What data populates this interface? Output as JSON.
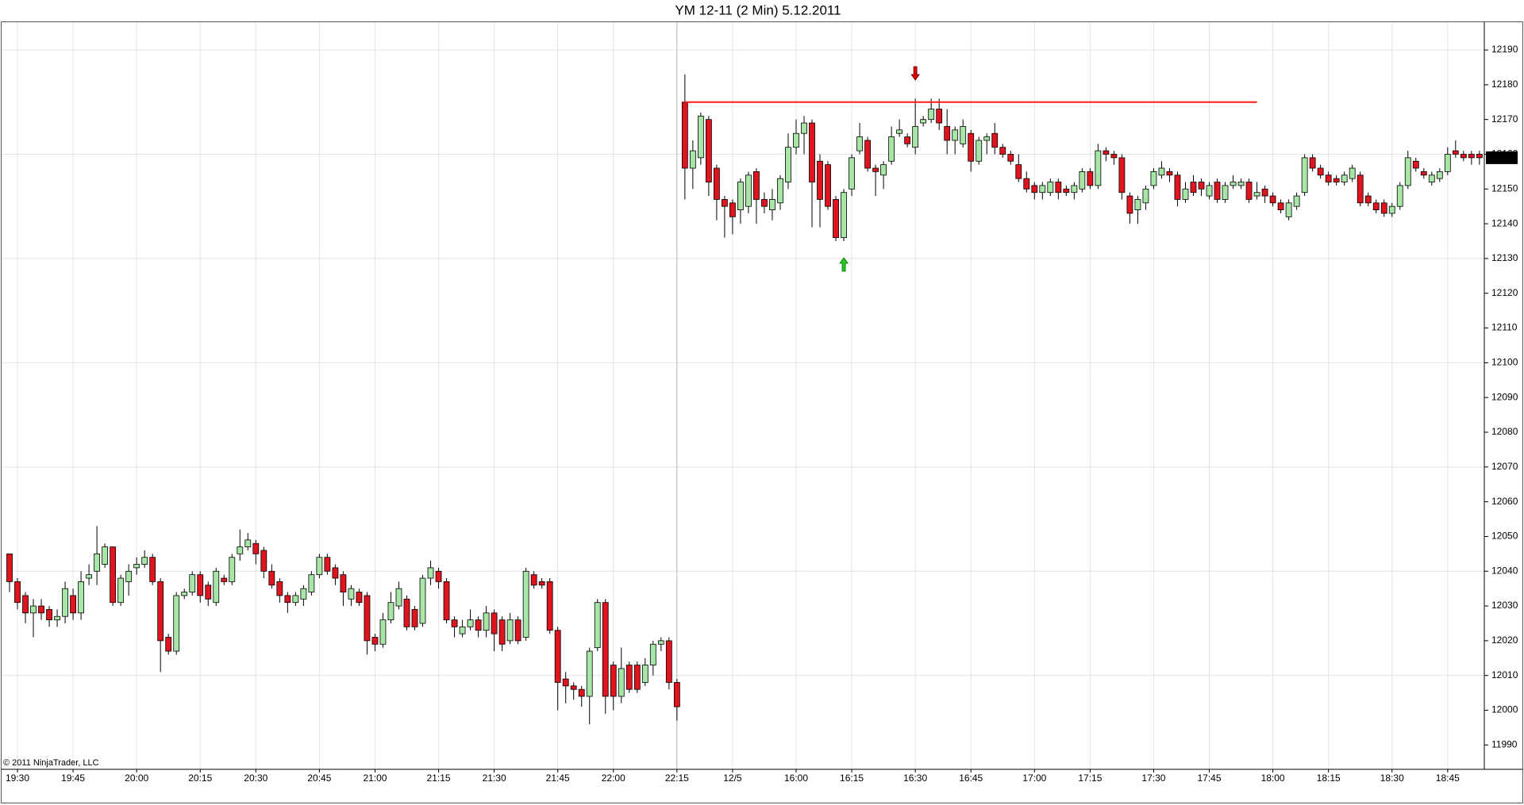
{
  "chart_data": {
    "type": "candlestick",
    "title": "YM 12-11 (2 Min)  5.12.2011",
    "copyright": "© 2011 NinjaTrader, LLC",
    "up_color": "#a8e6a8",
    "down_color": "#e0141e",
    "grid": true,
    "categories": [
      null,
      "19:30",
      null,
      null,
      null,
      null,
      null,
      null,
      "19:45",
      null,
      null,
      null,
      null,
      null,
      null,
      null,
      "20:00",
      null,
      null,
      null,
      null,
      null,
      null,
      null,
      "20:15",
      null,
      null,
      null,
      null,
      null,
      null,
      "20:30",
      null,
      null,
      null,
      null,
      null,
      null,
      null,
      "20:45",
      null,
      null,
      null,
      null,
      null,
      null,
      "21:00",
      null,
      null,
      null,
      null,
      null,
      null,
      null,
      "21:15",
      null,
      null,
      null,
      null,
      null,
      null,
      "21:30",
      null,
      null,
      null,
      null,
      null,
      null,
      null,
      "21:45",
      null,
      null,
      null,
      null,
      null,
      null,
      "22:00",
      null,
      null,
      null,
      null,
      null,
      null,
      null,
      "22:15",
      null,
      null,
      null,
      null,
      null,
      null,
      "12/5",
      null,
      null,
      null,
      null,
      null,
      null,
      null,
      "16:00",
      null,
      null,
      null,
      null,
      null,
      null,
      "16:15",
      null,
      null,
      null,
      null,
      null,
      null,
      null,
      "16:30",
      null,
      null,
      null,
      null,
      null,
      null,
      "16:45",
      null,
      null,
      null,
      null,
      null,
      null,
      null,
      "17:00",
      null,
      null,
      null,
      null,
      null,
      null,
      "17:15",
      null,
      null,
      null,
      null,
      null,
      null,
      null,
      "17:30",
      null,
      null,
      null,
      null,
      null,
      null,
      "17:45",
      null,
      null,
      null,
      null,
      null,
      null,
      null,
      "18:00",
      null,
      null,
      null,
      null,
      null,
      null,
      "18:15",
      null,
      null,
      null,
      null,
      null,
      null,
      null,
      "18:30",
      null,
      null,
      null,
      null,
      null,
      null,
      "18:45",
      null,
      null,
      null,
      null
    ],
    "open": [
      12045,
      12037,
      12033,
      12028,
      12030,
      12029,
      12026,
      12027,
      12033,
      12028,
      12038,
      12040,
      12042,
      12047,
      12031,
      12037,
      12041,
      12042,
      12044,
      12037,
      12021,
      12017,
      12033,
      12034,
      12039,
      12036,
      12031,
      12038,
      12037,
      12045,
      12047,
      12048,
      12046,
      12040,
      12037,
      12033,
      12031,
      12032,
      12034,
      12039,
      12044,
      12041,
      12039,
      12032,
      12034,
      12033,
      12021,
      12019,
      12026,
      12030,
      12032,
      12029,
      12025,
      12038,
      12040,
      12037,
      12026,
      12022,
      12024,
      12026,
      12023,
      12028,
      12026,
      12020,
      12026,
      12021,
      12039,
      12037,
      12037,
      12023,
      12009,
      12007,
      12006,
      12004,
      12018,
      12031,
      12013,
      12004,
      12013,
      12013,
      12008,
      12013,
      12019,
      12020,
      12008,
      12175,
      12156,
      12159,
      12170,
      12156,
      12147,
      12146,
      12144,
      12145,
      12155,
      12147,
      12144,
      12146,
      12152,
      12162,
      12166,
      12169,
      12158,
      12157,
      12147,
      12136,
      12150,
      12161,
      12164,
      12156,
      12154,
      12158,
      12166,
      12165,
      12162,
      12169,
      12170,
      12173,
      12168,
      12164,
      12163,
      12166,
      12158,
      12164,
      12166,
      12162,
      12160,
      12157,
      12153,
      12151,
      12149,
      12149,
      12152,
      12150,
      12149,
      12150,
      12155,
      12151,
      12161,
      12160,
      12159,
      12148,
      12144,
      12146,
      12151,
      12154,
      12155,
      12154,
      12147,
      12152,
      12152,
      12148,
      12152,
      12147,
      12151,
      12151,
      12152,
      12148,
      12150,
      12148,
      12146,
      12142,
      12145,
      12149,
      12159,
      12156,
      12154,
      12153,
      12152,
      12153,
      12154,
      12148,
      12146,
      12146,
      12143,
      12145,
      12151,
      12158,
      12155,
      12152,
      12153,
      12155,
      12161,
      12160,
      12160,
      12160
    ],
    "high": [
      12045,
      12038,
      12034,
      12032,
      12032,
      12030,
      12029,
      12037,
      12035,
      12040,
      12042,
      12053,
      12048,
      12047,
      12039,
      12042,
      12044,
      12046,
      12045,
      12038,
      12022,
      12034,
      12035,
      12040,
      12040,
      12037,
      12041,
      12039,
      12045,
      12052,
      12051,
      12049,
      12047,
      12042,
      12038,
      12034,
      12034,
      12036,
      12040,
      12045,
      12045,
      12042,
      12040,
      12036,
      12035,
      12034,
      12022,
      12028,
      12034,
      12037,
      12033,
      12030,
      12039,
      12043,
      12041,
      12038,
      12027,
      12026,
      12029,
      12027,
      12030,
      12029,
      12027,
      12028,
      12027,
      12041,
      12040,
      12038,
      12038,
      12024,
      12011,
      12008,
      12007,
      12018,
      12032,
      12032,
      12014,
      12018,
      12014,
      12014,
      12015,
      12020,
      12021,
      12021,
      12009,
      12183,
      12164,
      12172,
      12171,
      12157,
      12148,
      12147,
      12153,
      12155,
      12156,
      12149,
      12150,
      12154,
      12166,
      12170,
      12171,
      12170,
      12160,
      12158,
      12148,
      12150,
      12160,
      12169,
      12165,
      12157,
      12158,
      12168,
      12170,
      12166,
      12176,
      12171,
      12176,
      12176,
      12173,
      12168,
      12170,
      12167,
      12165,
      12166,
      12169,
      12163,
      12161,
      12160,
      12155,
      12152,
      12152,
      12153,
      12153,
      12151,
      12152,
      12156,
      12156,
      12163,
      12162,
      12161,
      12160,
      12149,
      12148,
      12151,
      12156,
      12158,
      12156,
      12155,
      12152,
      12154,
      12153,
      12152,
      12153,
      12152,
      12154,
      12153,
      12153,
      12152,
      12151,
      12149,
      12147,
      12147,
      12149,
      12160,
      12160,
      12157,
      12155,
      12154,
      12155,
      12157,
      12155,
      12149,
      12147,
      12147,
      12146,
      12152,
      12161,
      12159,
      12156,
      12155,
      12156,
      12162,
      12164,
      12161,
      12161,
      12161
    ],
    "low": [
      12034,
      12029,
      12025,
      12021,
      12026,
      12024,
      12024,
      12025,
      12026,
      12026,
      12036,
      12036,
      12041,
      12030,
      12030,
      12033,
      12039,
      12041,
      12036,
      12011,
      12016,
      12016,
      12032,
      12033,
      12031,
      12030,
      12030,
      12036,
      12036,
      12043,
      12046,
      12042,
      12038,
      12035,
      12031,
      12028,
      12030,
      12030,
      12033,
      12038,
      12039,
      12036,
      12030,
      12030,
      12030,
      12016,
      12017,
      12018,
      12025,
      12029,
      12023,
      12023,
      12024,
      12036,
      12035,
      12025,
      12021,
      12021,
      12023,
      12021,
      12021,
      12017,
      12017,
      12019,
      12019,
      12020,
      12035,
      12035,
      12022,
      12000,
      12002,
      12003,
      12001,
      11996,
      12017,
      11999,
      12000,
      12002,
      12005,
      12005,
      12007,
      12010,
      12017,
      12006,
      11997,
      12147,
      12150,
      12157,
      12148,
      12141,
      12136,
      12137,
      12140,
      12143,
      12140,
      12143,
      12141,
      12144,
      12150,
      12160,
      12160,
      12139,
      12139,
      12144,
      12135,
      12135,
      12148,
      12160,
      12155,
      12148,
      12150,
      12157,
      12165,
      12162,
      12160,
      12168,
      12169,
      12167,
      12160,
      12160,
      12162,
      12155,
      12157,
      12160,
      12160,
      12159,
      12157,
      12152,
      12149,
      12147,
      12147,
      12148,
      12147,
      12148,
      12147,
      12149,
      12150,
      12150,
      12158,
      12157,
      12147,
      12140,
      12140,
      12144,
      12150,
      12153,
      12152,
      12145,
      12146,
      12148,
      12148,
      12147,
      12146,
      12146,
      12150,
      12150,
      12146,
      12147,
      12146,
      12145,
      12143,
      12141,
      12144,
      12148,
      12155,
      12153,
      12151,
      12151,
      12151,
      12152,
      12145,
      12145,
      12143,
      12142,
      12142,
      12144,
      12150,
      12155,
      12153,
      12151,
      12152,
      12154,
      12159,
      12158,
      12157,
      12157
    ],
    "close": [
      12037,
      12031,
      12028,
      12030,
      12028,
      12026,
      12027,
      12035,
      12028,
      12037,
      12039,
      12045,
      12047,
      12031,
      12038,
      12040,
      12042,
      12044,
      12037,
      12020,
      12017,
      12033,
      12034,
      12039,
      12033,
      12032,
      12040,
      12037,
      12044,
      12047,
      12049,
      12045,
      12040,
      12036,
      12033,
      12031,
      12033,
      12035,
      12039,
      12044,
      12040,
      12038,
      12034,
      12035,
      12031,
      12020,
      12019,
      12026,
      12031,
      12035,
      12024,
      12024,
      12038,
      12041,
      12037,
      12026,
      12024,
      12024,
      12026,
      12023,
      12028,
      12022,
      12019,
      12026,
      12020,
      12040,
      12036,
      12036,
      12023,
      12008,
      12007,
      12006,
      12004,
      12017,
      12031,
      12004,
      12004,
      12012,
      12006,
      12006,
      12013,
      12019,
      12020,
      12008,
      12001,
      12156,
      12161,
      12171,
      12152,
      12147,
      12145,
      12142,
      12152,
      12154,
      12147,
      12145,
      12147,
      12153,
      12162,
      12166,
      12169,
      12152,
      12147,
      12145,
      12136,
      12149,
      12159,
      12165,
      12156,
      12155,
      12157,
      12165,
      12167,
      12163,
      12168,
      12170,
      12173,
      12169,
      12164,
      12167,
      12168,
      12158,
      12164,
      12165,
      12162,
      12160,
      12158,
      12153,
      12150,
      12149,
      12151,
      12152,
      12149,
      12149,
      12151,
      12155,
      12151,
      12161,
      12160,
      12159,
      12149,
      12143,
      12147,
      12150,
      12155,
      12156,
      12154,
      12147,
      12150,
      12149,
      12150,
      12151,
      12147,
      12151,
      12152,
      12152,
      12147,
      12149,
      12148,
      12146,
      12144,
      12146,
      12148,
      12159,
      12156,
      12154,
      12152,
      12152,
      12154,
      12156,
      12146,
      12146,
      12144,
      12143,
      12145,
      12151,
      12159,
      12156,
      12154,
      12154,
      12155,
      12160,
      12160,
      12159,
      12159,
      12159
    ],
    "lines": [
      {
        "value": 12175,
        "color": "#ff1a1a"
      }
    ],
    "ylim": [
      11983,
      12198
    ],
    "yticks": [
      11990,
      12000,
      12010,
      12020,
      12030,
      12040,
      12050,
      12060,
      12070,
      12080,
      12090,
      12100,
      12110,
      12120,
      12130,
      12140,
      12150,
      12160,
      12170,
      12180,
      12190
    ]
  }
}
